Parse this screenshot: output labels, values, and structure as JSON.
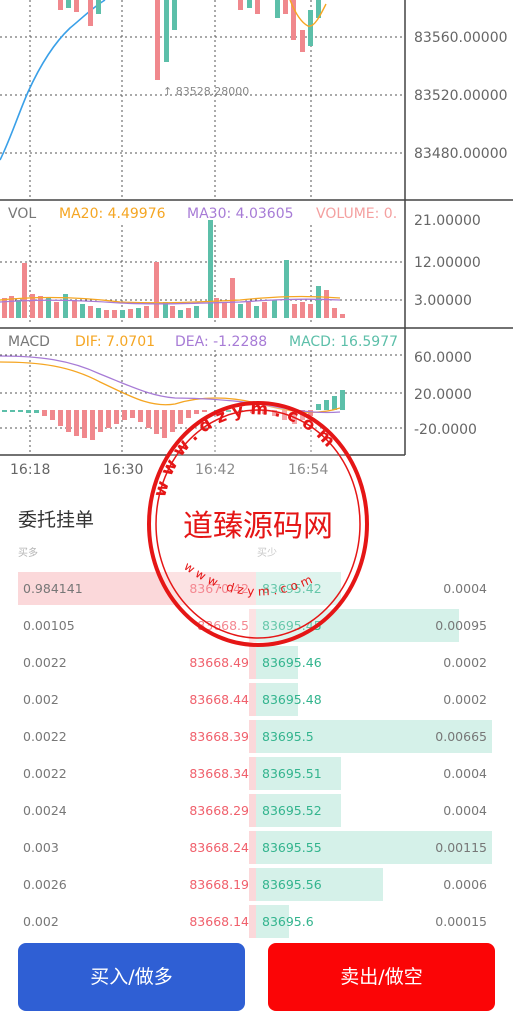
{
  "chart": {
    "price_axis": [
      "83560.00000",
      "83520.00000",
      "83480.00000"
    ],
    "low_marker": "↑ 83528.28000",
    "vol": {
      "label": "VOL",
      "ma20": "MA20: 4.49976",
      "ma30": "MA30: 4.03605",
      "volume": "VOLUME: 0.",
      "axis": [
        "21.00000",
        "12.00000",
        "3.00000"
      ]
    },
    "macd": {
      "label": "MACD",
      "dif": "DIF: 7.0701",
      "dea": "DEA: -1.2288",
      "macd": "MACD: 16.5977",
      "axis": [
        "60.0000",
        "20.0000",
        "-20.0000"
      ]
    },
    "time_axis": [
      "16:18",
      "16:30",
      "16:42",
      "16:54"
    ],
    "colors": {
      "up": "#5cbfa9",
      "down": "#f0888d",
      "ma20": "#f5a623",
      "ma30": "#a77bd6",
      "volume_label": "#f4a0a0",
      "dif": "#f5a623",
      "dea": "#a77bd6",
      "macd_label": "#5cbfa9",
      "price_line": "#3aa0e8"
    }
  },
  "orderbook": {
    "title": "委托挂单",
    "buy_header": "买多",
    "sell_header": "买少",
    "rows": [
      {
        "bid_amount": "0.984141",
        "bid_price": "83670.42",
        "ask_price": "83695.42",
        "ask_amount": "0.0004",
        "bid_depth": 1.0,
        "ask_depth": 0.36
      },
      {
        "bid_amount": "0.00105",
        "bid_price": "83668.5",
        "ask_price": "83695.45",
        "ask_amount": "0.00095",
        "bid_depth": 0.03,
        "ask_depth": 0.86
      },
      {
        "bid_amount": "0.0022",
        "bid_price": "83668.49",
        "ask_price": "83695.46",
        "ask_amount": "0.0002",
        "bid_depth": 0.03,
        "ask_depth": 0.18
      },
      {
        "bid_amount": "0.002",
        "bid_price": "83668.44",
        "ask_price": "83695.48",
        "ask_amount": "0.0002",
        "bid_depth": 0.03,
        "ask_depth": 0.18
      },
      {
        "bid_amount": "0.0022",
        "bid_price": "83668.39",
        "ask_price": "83695.5",
        "ask_amount": "0.00665",
        "bid_depth": 0.03,
        "ask_depth": 1.0
      },
      {
        "bid_amount": "0.0022",
        "bid_price": "83668.34",
        "ask_price": "83695.51",
        "ask_amount": "0.0004",
        "bid_depth": 0.03,
        "ask_depth": 0.36
      },
      {
        "bid_amount": "0.0024",
        "bid_price": "83668.29",
        "ask_price": "83695.52",
        "ask_amount": "0.0004",
        "bid_depth": 0.03,
        "ask_depth": 0.36
      },
      {
        "bid_amount": "0.003",
        "bid_price": "83668.24",
        "ask_price": "83695.55",
        "ask_amount": "0.00115",
        "bid_depth": 0.03,
        "ask_depth": 1.0
      },
      {
        "bid_amount": "0.0026",
        "bid_price": "83668.19",
        "ask_price": "83695.56",
        "ask_amount": "0.0006",
        "bid_depth": 0.03,
        "ask_depth": 0.54
      },
      {
        "bid_amount": "0.002",
        "bid_price": "83668.14",
        "ask_price": "83695.6",
        "ask_amount": "0.00015",
        "bid_depth": 0.03,
        "ask_depth": 0.14
      }
    ]
  },
  "actions": {
    "buy_label": "买入/做多",
    "sell_label": "卖出/做空"
  },
  "watermark": {
    "text": "道臻源码网",
    "arc_top": "www.dzym.com",
    "arc_bottom": "www.dzym.com",
    "color": "#e51616"
  }
}
